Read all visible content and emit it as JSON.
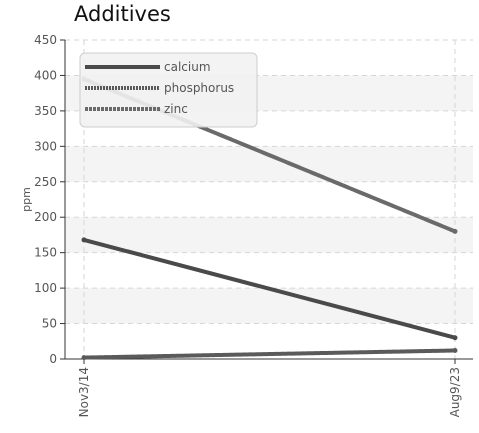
{
  "chart_data": {
    "type": "line",
    "title": "Additives",
    "xlabel": "",
    "ylabel": "ppm",
    "x": [
      "Nov3/14",
      "Aug9/23"
    ],
    "ylim": [
      0,
      450
    ],
    "yticks": [
      0,
      50,
      100,
      150,
      200,
      250,
      300,
      350,
      400,
      450
    ],
    "grid": true,
    "legend_position": "top-left",
    "series": [
      {
        "name": "calcium",
        "values": [
          168,
          30
        ],
        "color": "#4a4a4a"
      },
      {
        "name": "phosphorus",
        "values": [
          2,
          12
        ],
        "color": "#5a5a5a"
      },
      {
        "name": "zinc",
        "values": [
          395,
          180
        ],
        "color": "#6a6a6a"
      }
    ]
  }
}
